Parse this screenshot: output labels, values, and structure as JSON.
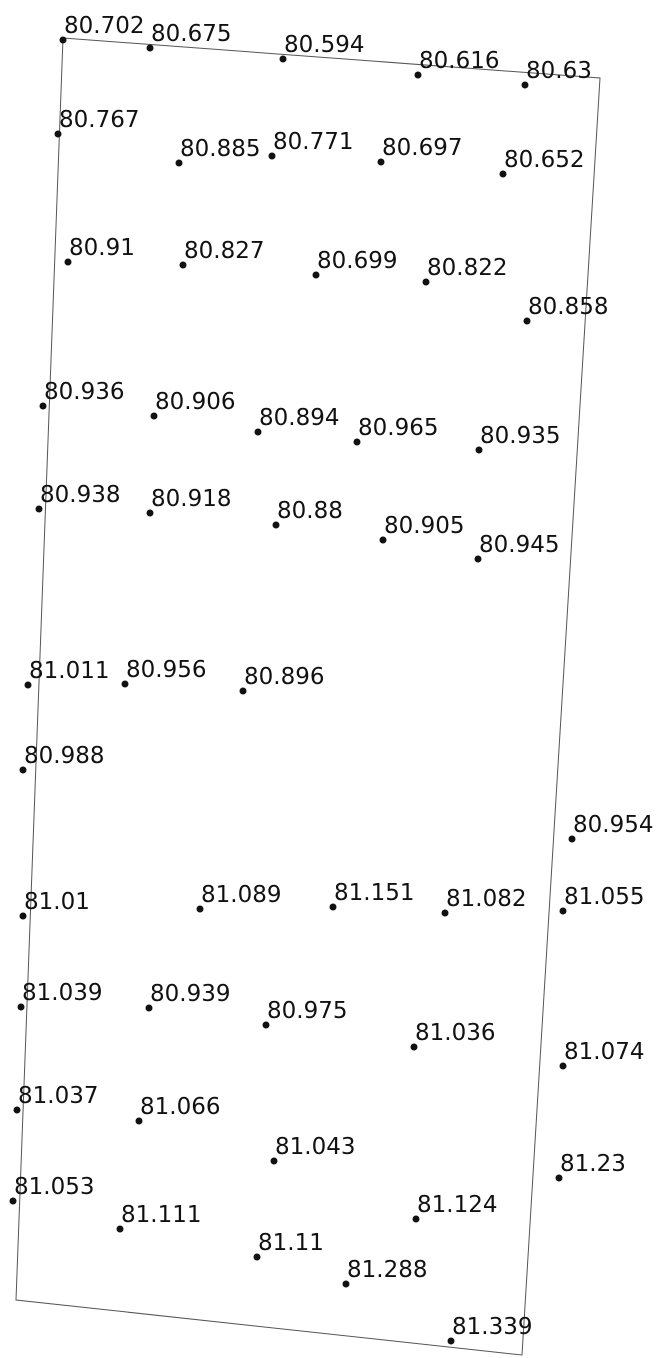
{
  "points": [
    {
      "label": "80.702"
    },
    {
      "label": "80.675"
    },
    {
      "label": "80.594"
    },
    {
      "label": "80.616"
    },
    {
      "label": "80.63"
    },
    {
      "label": "80.767"
    },
    {
      "label": "80.885"
    },
    {
      "label": "80.771"
    },
    {
      "label": "80.697"
    },
    {
      "label": "80.652"
    },
    {
      "label": "80.91"
    },
    {
      "label": "80.827"
    },
    {
      "label": "80.699"
    },
    {
      "label": "80.822"
    },
    {
      "label": "80.858"
    },
    {
      "label": "80.936"
    },
    {
      "label": "80.906"
    },
    {
      "label": "80.894"
    },
    {
      "label": "80.965"
    },
    {
      "label": "80.935"
    },
    {
      "label": "80.938"
    },
    {
      "label": "80.918"
    },
    {
      "label": "80.88"
    },
    {
      "label": "80.905"
    },
    {
      "label": "80.945"
    },
    {
      "label": "81.011"
    },
    {
      "label": "80.956"
    },
    {
      "label": "80.896"
    },
    {
      "label": "80.988"
    },
    {
      "label": "80.954"
    },
    {
      "label": "81.01"
    },
    {
      "label": "81.089"
    },
    {
      "label": "81.151"
    },
    {
      "label": "81.082"
    },
    {
      "label": "81.055"
    },
    {
      "label": "81.039"
    },
    {
      "label": "80.939"
    },
    {
      "label": "80.975"
    },
    {
      "label": "81.036"
    },
    {
      "label": "81.074"
    },
    {
      "label": "81.037"
    },
    {
      "label": "81.066"
    },
    {
      "label": "81.043"
    },
    {
      "label": "81.23"
    },
    {
      "label": "81.053"
    },
    {
      "label": "81.111"
    },
    {
      "label": "81.124"
    },
    {
      "label": "81.11"
    },
    {
      "label": "81.288"
    },
    {
      "label": "81.339"
    }
  ]
}
